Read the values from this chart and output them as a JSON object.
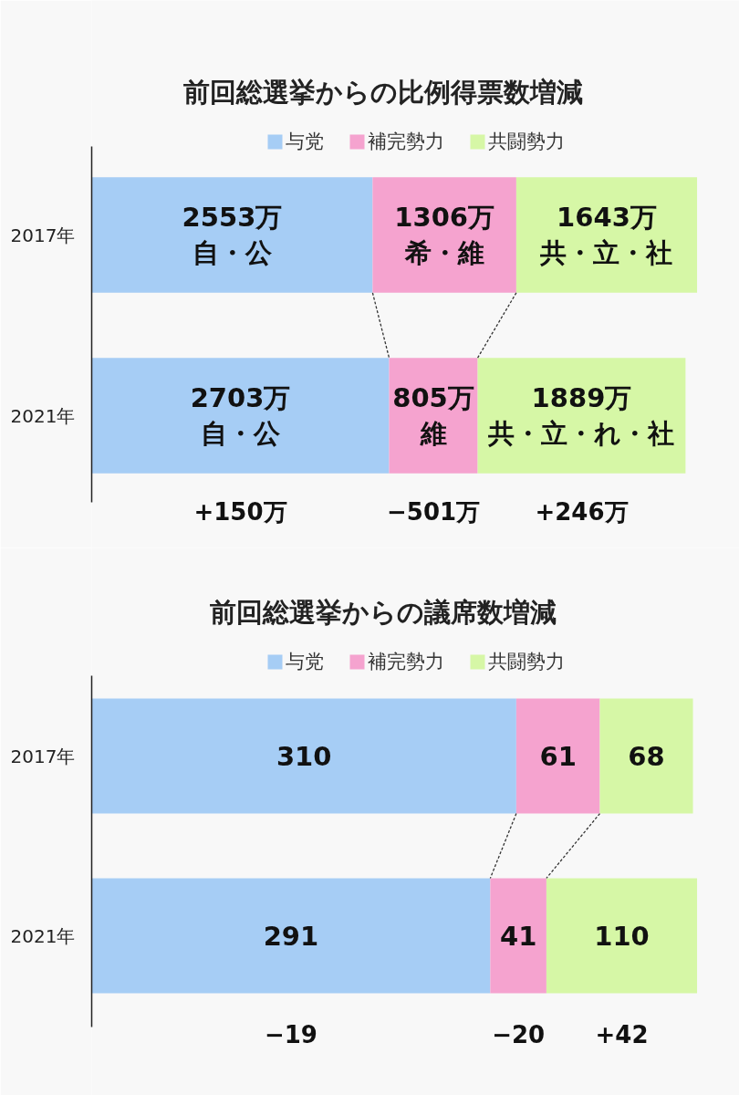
{
  "chart_data": [
    {
      "type": "bar",
      "orientation": "horizontal",
      "stacked": true,
      "title": "前回総選挙からの比例得票数増減",
      "categories": [
        "2017年",
        "2021年"
      ],
      "series": [
        {
          "name": "与党",
          "color": "#a6cdf5",
          "values": [
            2553,
            2703
          ],
          "value_labels": [
            "2553万自・公",
            "2703万自・公"
          ]
        },
        {
          "name": "補完勢力",
          "color": "#f5a3cf",
          "values": [
            1306,
            805
          ],
          "value_labels": [
            "1306万希・維",
            "805万維"
          ]
        },
        {
          "name": "共闘勢力",
          "color": "#d6f7a6",
          "values": [
            1643,
            1889
          ],
          "value_labels": [
            "1643万共・立・社",
            "1889万共・立・れ・社"
          ]
        }
      ],
      "tick_labels": "y",
      "legend": "top",
      "annotations": [
        "+150万",
        "−501万",
        "+246万"
      ]
    },
    {
      "type": "bar",
      "orientation": "horizontal",
      "stacked": true,
      "title": "前回総選挙からの議席数増減",
      "categories": [
        "2017年",
        "2021年"
      ],
      "series": [
        {
          "name": "与党",
          "color": "#a6cdf5",
          "values": [
            310,
            291
          ]
        },
        {
          "name": "補完勢力",
          "color": "#f5a3cf",
          "values": [
            61,
            41
          ]
        },
        {
          "name": "共闘勢力",
          "color": "#d6f7a6",
          "values": [
            68,
            110
          ]
        }
      ],
      "data_labels": true,
      "tick_labels": "y",
      "legend": "top",
      "annotations": [
        "−19",
        "−20",
        "+42"
      ]
    }
  ]
}
